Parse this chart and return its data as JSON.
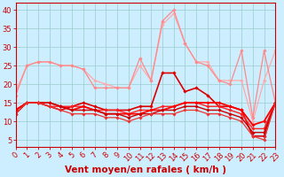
{
  "title": "",
  "xlabel": "Vent moyen/en rafales ( km/h )",
  "background_color": "#cceeff",
  "grid_color": "#99cccc",
  "xlim": [
    0,
    23
  ],
  "ylim": [
    3,
    42
  ],
  "yticks": [
    5,
    10,
    15,
    20,
    25,
    30,
    35,
    40
  ],
  "xticks": [
    0,
    1,
    2,
    3,
    4,
    5,
    6,
    7,
    8,
    9,
    10,
    11,
    12,
    13,
    14,
    15,
    16,
    17,
    18,
    19,
    20,
    21,
    22,
    23
  ],
  "lines": [
    {
      "x": [
        0,
        1,
        2,
        3,
        4,
        5,
        6,
        7,
        8,
        9,
        10,
        11,
        12,
        13,
        14,
        15,
        16,
        17,
        18,
        19,
        20,
        21,
        22,
        23
      ],
      "y": [
        18,
        25,
        26,
        26,
        25,
        25,
        24,
        21,
        20,
        19,
        19,
        25,
        21,
        36,
        39,
        31,
        26,
        26,
        21,
        21,
        21,
        10,
        21,
        29
      ],
      "color": "#ffaaaa",
      "lw": 0.9,
      "marker": "D",
      "ms": 1.8
    },
    {
      "x": [
        0,
        1,
        2,
        3,
        4,
        5,
        6,
        7,
        8,
        9,
        10,
        11,
        12,
        13,
        14,
        15,
        16,
        17,
        18,
        19,
        20,
        21,
        22,
        23
      ],
      "y": [
        17,
        25,
        26,
        26,
        25,
        25,
        24,
        19,
        19,
        19,
        19,
        27,
        21,
        37,
        40,
        31,
        26,
        25,
        21,
        20,
        29,
        11,
        29,
        15
      ],
      "color": "#ff8888",
      "lw": 0.9,
      "marker": "D",
      "ms": 1.8
    },
    {
      "x": [
        0,
        1,
        2,
        3,
        4,
        5,
        6,
        7,
        8,
        9,
        10,
        11,
        12,
        13,
        14,
        15,
        16,
        17,
        18,
        19,
        20,
        21,
        22,
        23
      ],
      "y": [
        13,
        15,
        15,
        14,
        13,
        14,
        15,
        14,
        13,
        13,
        13,
        14,
        14,
        23,
        23,
        18,
        19,
        17,
        14,
        14,
        13,
        6,
        6,
        15
      ],
      "color": "#dd0000",
      "lw": 1.2,
      "marker": "D",
      "ms": 1.8
    },
    {
      "x": [
        0,
        1,
        2,
        3,
        4,
        5,
        6,
        7,
        8,
        9,
        10,
        11,
        12,
        13,
        14,
        15,
        16,
        17,
        18,
        19,
        20,
        21,
        22,
        23
      ],
      "y": [
        13,
        15,
        15,
        14,
        14,
        14,
        14,
        13,
        13,
        13,
        12,
        13,
        13,
        14,
        14,
        15,
        15,
        14,
        14,
        13,
        12,
        8,
        8,
        15
      ],
      "color": "#ff2222",
      "lw": 1.0,
      "marker": "D",
      "ms": 1.8
    },
    {
      "x": [
        0,
        1,
        2,
        3,
        4,
        5,
        6,
        7,
        8,
        9,
        10,
        11,
        12,
        13,
        14,
        15,
        16,
        17,
        18,
        19,
        20,
        21,
        22,
        23
      ],
      "y": [
        13,
        15,
        15,
        15,
        14,
        13,
        14,
        13,
        12,
        12,
        12,
        12,
        13,
        13,
        14,
        15,
        15,
        15,
        15,
        14,
        13,
        9,
        10,
        15
      ],
      "color": "#ff0000",
      "lw": 1.3,
      "marker": "D",
      "ms": 1.8
    },
    {
      "x": [
        0,
        1,
        2,
        3,
        4,
        5,
        6,
        7,
        8,
        9,
        10,
        11,
        12,
        13,
        14,
        15,
        16,
        17,
        18,
        19,
        20,
        21,
        22,
        23
      ],
      "y": [
        12,
        15,
        15,
        15,
        14,
        13,
        13,
        13,
        12,
        12,
        11,
        12,
        12,
        13,
        13,
        14,
        14,
        13,
        13,
        12,
        11,
        7,
        7,
        15
      ],
      "color": "#cc0000",
      "lw": 1.0,
      "marker": "D",
      "ms": 1.8
    },
    {
      "x": [
        0,
        1,
        2,
        3,
        4,
        5,
        6,
        7,
        8,
        9,
        10,
        11,
        12,
        13,
        14,
        15,
        16,
        17,
        18,
        19,
        20,
        21,
        22,
        23
      ],
      "y": [
        12,
        15,
        15,
        14,
        13,
        12,
        12,
        12,
        11,
        11,
        10,
        11,
        12,
        12,
        12,
        13,
        13,
        12,
        12,
        11,
        10,
        6,
        5,
        15
      ],
      "color": "#ee3333",
      "lw": 0.9,
      "marker": "D",
      "ms": 1.8
    }
  ],
  "tick_color": "#cc0000",
  "label_color": "#cc0000",
  "axis_color": "#cc0000",
  "xlabel_fontsize": 7.5,
  "tick_fontsize": 6,
  "figsize": [
    3.2,
    2.0
  ],
  "dpi": 100
}
